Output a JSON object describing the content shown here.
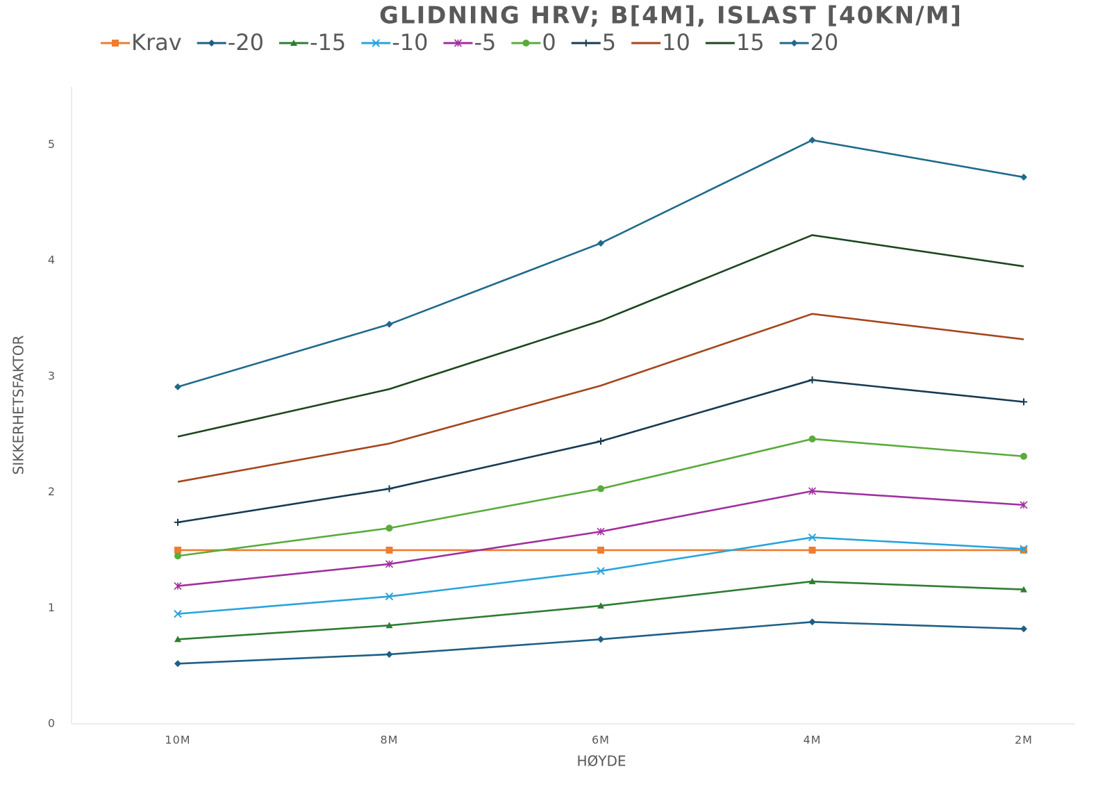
{
  "chart_data": {
    "type": "line",
    "title": "GLIDNING HRV; B[4M], ISLAST [40KN/M]",
    "x_label": "HØYDE",
    "y_label": "SIKKERHETSFAKTOR",
    "categories": [
      "10M",
      "8M",
      "6M",
      "4M",
      "2M"
    ],
    "ylim": [
      0,
      5.5
    ],
    "yticks": [
      0,
      1,
      2,
      3,
      4,
      5
    ],
    "grid": false,
    "legend": "top",
    "series": [
      {
        "name": "Krav",
        "color": "#ed7d31",
        "marker": "square",
        "values": [
          1.5,
          1.5,
          1.5,
          1.5,
          1.5
        ]
      },
      {
        "name": "-20",
        "color": "#1f5f86",
        "marker": "diamond",
        "values": [
          0.52,
          0.6,
          0.73,
          0.88,
          0.82
        ]
      },
      {
        "name": "-15",
        "color": "#2e7d32",
        "marker": "triangle",
        "values": [
          0.73,
          0.85,
          1.02,
          1.23,
          1.16
        ]
      },
      {
        "name": "-10",
        "color": "#29a3dd",
        "marker": "x",
        "values": [
          0.95,
          1.1,
          1.32,
          1.61,
          1.51
        ]
      },
      {
        "name": "-5",
        "color": "#a0309f",
        "marker": "star",
        "values": [
          1.19,
          1.38,
          1.66,
          2.01,
          1.89
        ]
      },
      {
        "name": "0",
        "color": "#5aab3c",
        "marker": "circle",
        "values": [
          1.45,
          1.69,
          2.03,
          2.46,
          2.31
        ]
      },
      {
        "name": "5",
        "color": "#173a52",
        "marker": "plus",
        "values": [
          1.74,
          2.03,
          2.44,
          2.97,
          2.78
        ]
      },
      {
        "name": "10",
        "color": "#a5461c",
        "marker": "none",
        "values": [
          2.09,
          2.42,
          2.92,
          3.54,
          3.32
        ]
      },
      {
        "name": "15",
        "color": "#1e4620",
        "marker": "none",
        "values": [
          2.48,
          2.89,
          3.48,
          4.22,
          3.95
        ]
      },
      {
        "name": "20",
        "color": "#1f6a8c",
        "marker": "diamond",
        "values": [
          2.91,
          3.45,
          4.15,
          5.04,
          4.72
        ]
      }
    ]
  }
}
